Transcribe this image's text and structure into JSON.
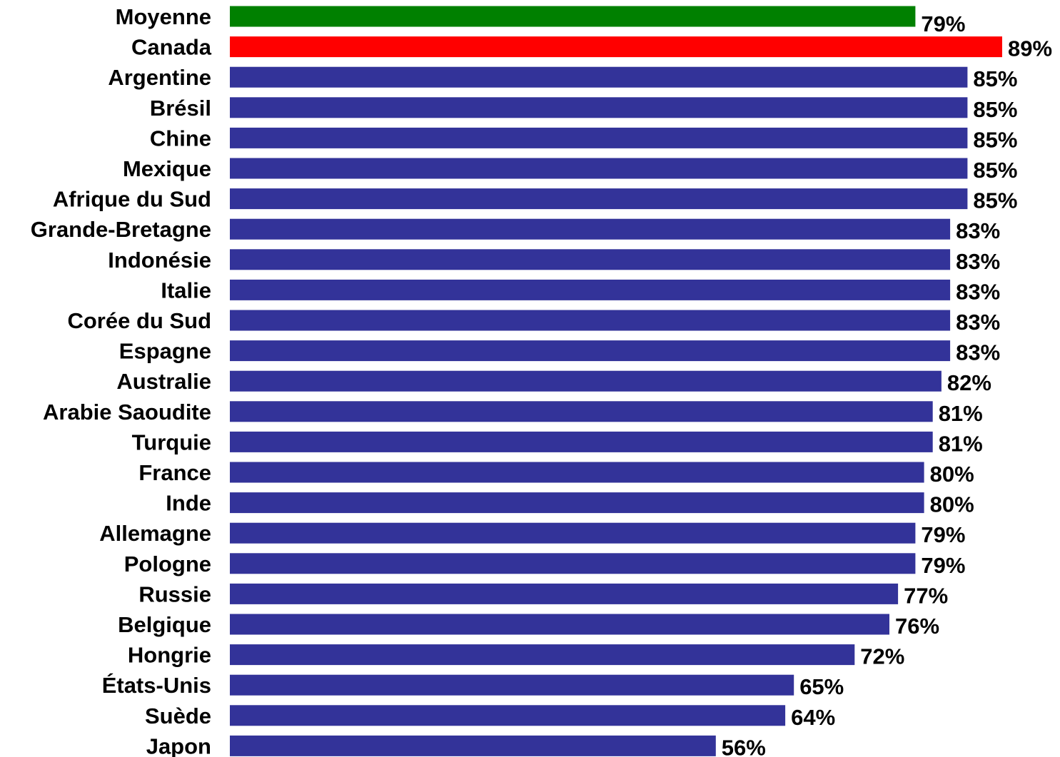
{
  "chart_data": {
    "type": "bar",
    "orientation": "horizontal",
    "title": "",
    "xlabel": "",
    "ylabel": "",
    "xlim": [
      0,
      89
    ],
    "grid": false,
    "legend": "none",
    "value_suffix": "%",
    "categories": [
      "Moyenne",
      "Canada",
      "Argentine",
      "Brésil",
      "Chine",
      "Mexique",
      "Afrique du Sud",
      "Grande-Bretagne",
      "Indonésie",
      "Italie",
      "Corée du Sud",
      "Espagne",
      "Australie",
      "Arabie Saoudite",
      "Turquie",
      "France",
      "Inde",
      "Allemagne",
      "Pologne",
      "Russie",
      "Belgique",
      "Hongrie",
      "États-Unis",
      "Suède",
      "Japon"
    ],
    "values": [
      79,
      89,
      85,
      85,
      85,
      85,
      85,
      83,
      83,
      83,
      83,
      83,
      82,
      81,
      81,
      80,
      80,
      79,
      79,
      77,
      76,
      72,
      65,
      64,
      56
    ],
    "value_labels": [
      "79%",
      "89%",
      "85%",
      "85%",
      "85%",
      "85%",
      "85%",
      "83%",
      "83%",
      "83%",
      "83%",
      "83%",
      "82%",
      "81%",
      "81%",
      "80%",
      "80%",
      "79%",
      "79%",
      "77%",
      "76%",
      "72%",
      "65%",
      "64%",
      "56%"
    ],
    "colors": {
      "default": "#333399",
      "highlight": {
        "Moyenne": "#008000",
        "Canada": "#ff0000"
      }
    }
  }
}
